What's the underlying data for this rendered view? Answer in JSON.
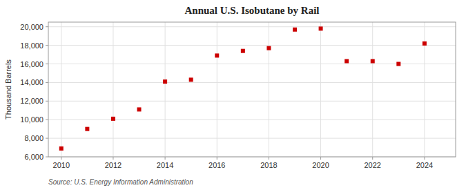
{
  "chart_data": {
    "type": "scatter",
    "title": "Annual U.S. Isobutane by Rail",
    "ylabel": "Thousand Barrels",
    "annotations": [
      "Source: U.S. Energy Information Administration"
    ],
    "x": [
      2010,
      2011,
      2012,
      2013,
      2014,
      2015,
      2016,
      2017,
      2018,
      2019,
      2020,
      2021,
      2022,
      2023,
      2024
    ],
    "values": [
      6900,
      9000,
      10100,
      11100,
      14100,
      14300,
      16900,
      17400,
      17700,
      19700,
      19800,
      16300,
      16300,
      16000,
      18200
    ],
    "color": "#cc0000",
    "marker": "square",
    "xlim": [
      2009.5,
      2025.2
    ],
    "xticks": [
      2010,
      2012,
      2014,
      2016,
      2018,
      2020,
      2022,
      2024
    ],
    "ylim": [
      6000,
      20500
    ],
    "yticks": [
      {
        "value": 6000,
        "label": "6,000"
      },
      {
        "value": 8000,
        "label": "8,000"
      },
      {
        "value": 10000,
        "label": "10,000"
      },
      {
        "value": 12000,
        "label": "12,000"
      },
      {
        "value": 14000,
        "label": "14,000"
      },
      {
        "value": 16000,
        "label": "16,000"
      },
      {
        "value": 18000,
        "label": "18,000"
      },
      {
        "value": 20000,
        "label": "20,000"
      }
    ],
    "grid": true
  }
}
